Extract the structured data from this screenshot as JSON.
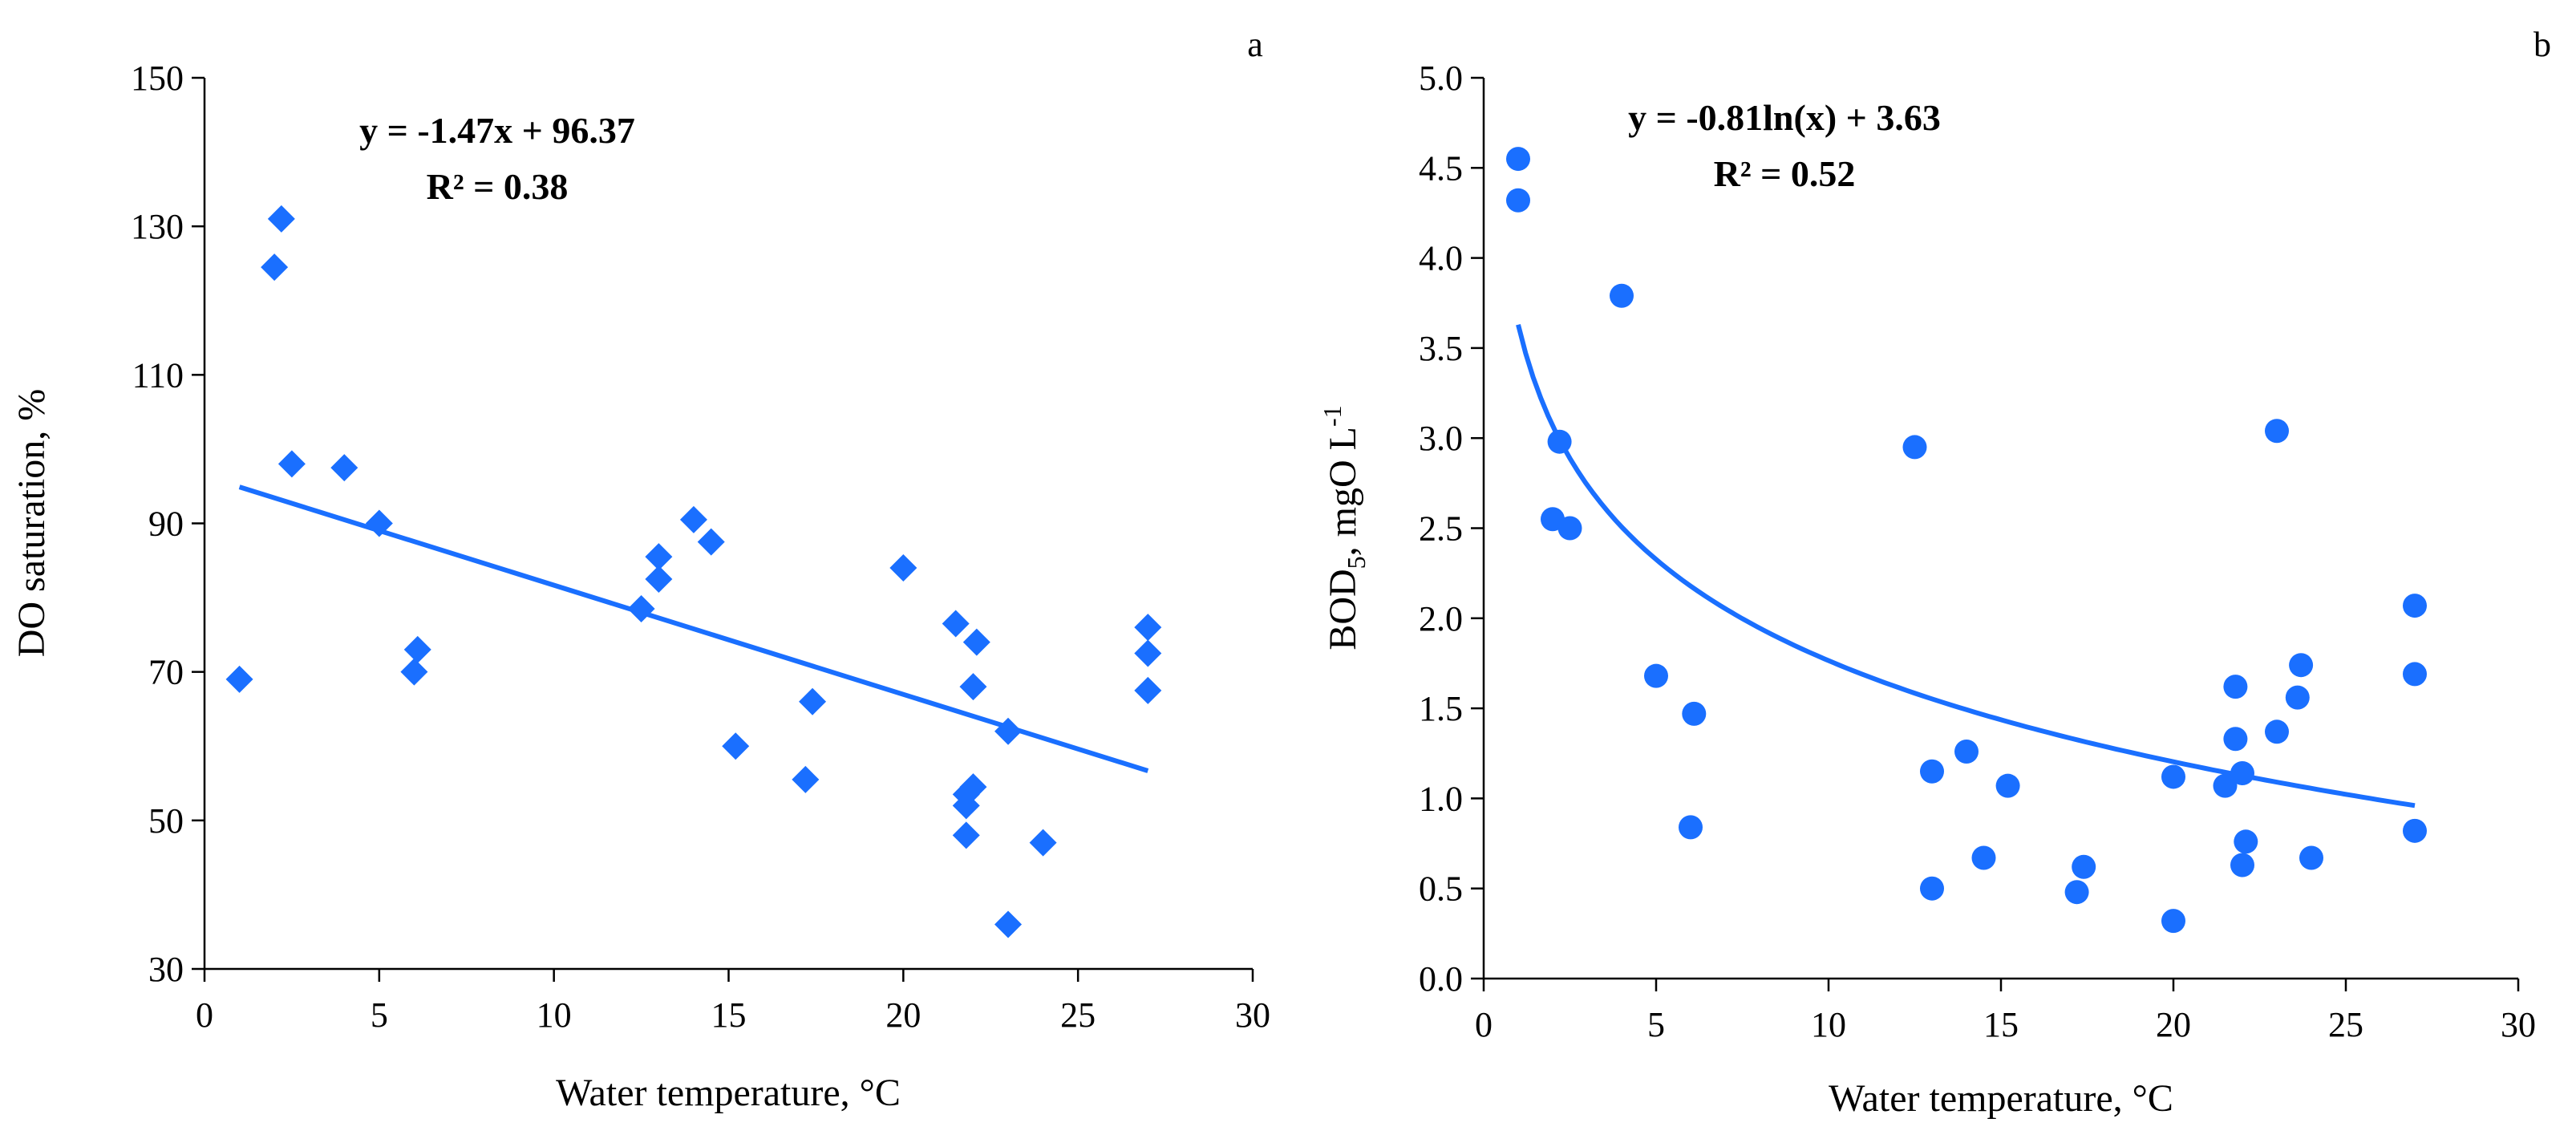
{
  "colors": {
    "marker": "#1a6fff",
    "axis": "#000000"
  },
  "chart_data": [
    {
      "type": "scatter",
      "panel_label": "a",
      "marker": "diamond",
      "title": "",
      "xlabel": "Water temperature, °C",
      "ylabel": "DO saturation, %",
      "xlim": [
        0,
        30
      ],
      "ylim": [
        30,
        150
      ],
      "xticks": [
        "0",
        "5",
        "10",
        "15",
        "20",
        "25",
        "30"
      ],
      "yticks": [
        "30",
        "50",
        "70",
        "90",
        "110",
        "130",
        "150"
      ],
      "equation": "y = -1.47x + 96.37",
      "r2": "R² = 0.38",
      "trendline": {
        "kind": "linear",
        "slope": -1.47,
        "intercept": 96.37,
        "xrange": [
          1,
          27
        ]
      },
      "points": [
        {
          "x": 1.0,
          "y": 69
        },
        {
          "x": 2.0,
          "y": 124.5
        },
        {
          "x": 2.2,
          "y": 131
        },
        {
          "x": 2.5,
          "y": 98
        },
        {
          "x": 4.0,
          "y": 97.5
        },
        {
          "x": 5.0,
          "y": 90
        },
        {
          "x": 6.0,
          "y": 70
        },
        {
          "x": 6.1,
          "y": 73
        },
        {
          "x": 12.5,
          "y": 78.5
        },
        {
          "x": 13.0,
          "y": 82.5
        },
        {
          "x": 13.0,
          "y": 85.5
        },
        {
          "x": 14.0,
          "y": 90.5
        },
        {
          "x": 14.5,
          "y": 87.5
        },
        {
          "x": 15.2,
          "y": 60
        },
        {
          "x": 17.2,
          "y": 55.5
        },
        {
          "x": 17.4,
          "y": 66
        },
        {
          "x": 20.0,
          "y": 84
        },
        {
          "x": 21.5,
          "y": 76.5
        },
        {
          "x": 21.8,
          "y": 48
        },
        {
          "x": 21.8,
          "y": 52
        },
        {
          "x": 21.8,
          "y": 53.5
        },
        {
          "x": 22.0,
          "y": 54.5
        },
        {
          "x": 22.0,
          "y": 68
        },
        {
          "x": 22.1,
          "y": 74
        },
        {
          "x": 23.0,
          "y": 62
        },
        {
          "x": 23.0,
          "y": 36
        },
        {
          "x": 24.0,
          "y": 47
        },
        {
          "x": 27.0,
          "y": 76
        },
        {
          "x": 27.0,
          "y": 72.5
        },
        {
          "x": 27.0,
          "y": 67.5
        }
      ]
    },
    {
      "type": "scatter",
      "panel_label": "b",
      "marker": "circle",
      "title": "",
      "xlabel": "Water temperature, °C",
      "ylabel_main": "BOD",
      "ylabel_sub": "5",
      "ylabel_rest": ", mgO L",
      "ylabel_sup": "-1",
      "xlim": [
        0,
        30
      ],
      "ylim": [
        0,
        5
      ],
      "xticks": [
        "0",
        "5",
        "10",
        "15",
        "20",
        "25",
        "30"
      ],
      "yticks": [
        "0.0",
        "0.5",
        "1.0",
        "1.5",
        "2.0",
        "2.5",
        "3.0",
        "3.5",
        "4.0",
        "4.5",
        "5.0"
      ],
      "equation": "y = -0.81ln(x) + 3.63",
      "r2": "R² = 0.52",
      "trendline": {
        "kind": "log",
        "a": -0.81,
        "b": 3.63,
        "xrange": [
          1,
          27
        ]
      },
      "points": [
        {
          "x": 1.0,
          "y": 4.55
        },
        {
          "x": 1.0,
          "y": 4.32
        },
        {
          "x": 2.0,
          "y": 2.55
        },
        {
          "x": 2.2,
          "y": 2.98
        },
        {
          "x": 2.5,
          "y": 2.5
        },
        {
          "x": 4.0,
          "y": 3.79
        },
        {
          "x": 5.0,
          "y": 1.68
        },
        {
          "x": 6.0,
          "y": 0.84
        },
        {
          "x": 6.1,
          "y": 1.47
        },
        {
          "x": 12.5,
          "y": 2.95
        },
        {
          "x": 13.0,
          "y": 1.15
        },
        {
          "x": 13.0,
          "y": 0.5
        },
        {
          "x": 14.0,
          "y": 1.26
        },
        {
          "x": 14.5,
          "y": 0.67
        },
        {
          "x": 15.2,
          "y": 1.07
        },
        {
          "x": 17.2,
          "y": 0.48
        },
        {
          "x": 17.4,
          "y": 0.62
        },
        {
          "x": 20.0,
          "y": 1.12
        },
        {
          "x": 20.0,
          "y": 0.32
        },
        {
          "x": 21.5,
          "y": 1.07
        },
        {
          "x": 21.8,
          "y": 1.62
        },
        {
          "x": 21.8,
          "y": 1.33
        },
        {
          "x": 22.0,
          "y": 1.14
        },
        {
          "x": 22.0,
          "y": 0.63
        },
        {
          "x": 22.1,
          "y": 0.76
        },
        {
          "x": 23.0,
          "y": 1.37
        },
        {
          "x": 23.0,
          "y": 3.04
        },
        {
          "x": 23.6,
          "y": 1.56
        },
        {
          "x": 23.7,
          "y": 1.74
        },
        {
          "x": 24.0,
          "y": 0.67
        },
        {
          "x": 27.0,
          "y": 2.07
        },
        {
          "x": 27.0,
          "y": 1.69
        },
        {
          "x": 27.0,
          "y": 0.82
        }
      ]
    }
  ]
}
